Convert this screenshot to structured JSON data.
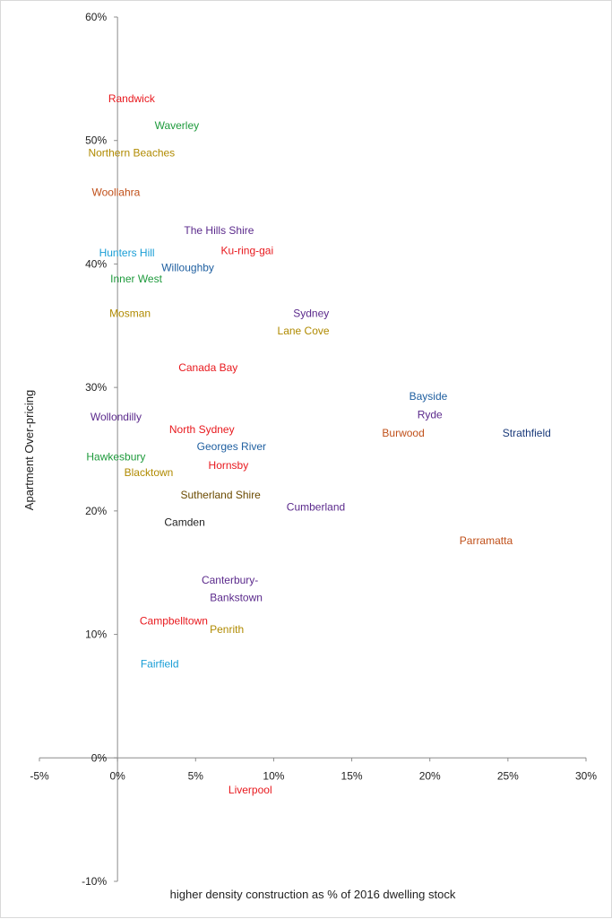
{
  "chart_data": {
    "type": "scatter",
    "xlabel": "higher density construction as % of 2016 dwelling stock",
    "ylabel": "Apartment Over-pricing",
    "xlim": [
      -5,
      30
    ],
    "ylim": [
      -10,
      60
    ],
    "x_ticks": [
      -5,
      0,
      5,
      10,
      15,
      20,
      25,
      30
    ],
    "y_ticks": [
      -10,
      0,
      10,
      20,
      30,
      40,
      50,
      60
    ],
    "x_tick_labels": [
      "-5%",
      "0%",
      "5%",
      "10%",
      "15%",
      "20%",
      "25%",
      "30%"
    ],
    "y_tick_labels": [
      "-10%",
      "0%",
      "10%",
      "20%",
      "30%",
      "40%",
      "50%",
      "60%"
    ],
    "grid": false,
    "points": [
      {
        "label": "Randwick",
        "x": 0.9,
        "y": 53.4,
        "color": "#e8191e"
      },
      {
        "label": "Waverley",
        "x": 3.8,
        "y": 51.2,
        "color": "#1e9a3c"
      },
      {
        "label": "Northern Beaches",
        "x": 0.9,
        "y": 49.0,
        "color": "#b08a00"
      },
      {
        "label": "Woollahra",
        "x": -0.1,
        "y": 45.8,
        "color": "#c0501a"
      },
      {
        "label": "The Hills Shire",
        "x": 6.5,
        "y": 42.7,
        "color": "#5b2a8c"
      },
      {
        "label": "Ku-ring-gai",
        "x": 8.3,
        "y": 41.1,
        "color": "#e8191e"
      },
      {
        "label": "Hunters Hill",
        "x": 0.6,
        "y": 40.9,
        "color": "#1a9ed6"
      },
      {
        "label": "Willoughby",
        "x": 4.5,
        "y": 39.7,
        "color": "#1f5fa0"
      },
      {
        "label": "Inner West",
        "x": 1.2,
        "y": 38.8,
        "color": "#1e9a3c"
      },
      {
        "label": "Mosman",
        "x": 0.8,
        "y": 36.0,
        "color": "#b08a00"
      },
      {
        "label": "Sydney",
        "x": 12.4,
        "y": 36.0,
        "color": "#5b2a8c"
      },
      {
        "label": "Lane Cove",
        "x": 11.9,
        "y": 34.6,
        "color": "#b08a00"
      },
      {
        "label": "Canada Bay",
        "x": 5.8,
        "y": 31.6,
        "color": "#e8191e"
      },
      {
        "label": "Bayside",
        "x": 19.9,
        "y": 29.3,
        "color": "#1f5fa0"
      },
      {
        "label": "Ryde",
        "x": 20.0,
        "y": 27.8,
        "color": "#5b2a8c"
      },
      {
        "label": "Wollondilly",
        "x": -0.1,
        "y": 27.6,
        "color": "#5b2a8c"
      },
      {
        "label": "North Sydney",
        "x": 5.4,
        "y": 26.6,
        "color": "#e8191e"
      },
      {
        "label": "Burwood",
        "x": 18.3,
        "y": 26.3,
        "color": "#c0501a"
      },
      {
        "label": "Strathfield",
        "x": 26.2,
        "y": 26.3,
        "color": "#1a3a7a"
      },
      {
        "label": "Georges River",
        "x": 7.3,
        "y": 25.2,
        "color": "#1f5fa0"
      },
      {
        "label": "Hawkesbury",
        "x": -0.1,
        "y": 24.4,
        "color": "#1e9a3c"
      },
      {
        "label": "Hornsby",
        "x": 7.1,
        "y": 23.7,
        "color": "#e8191e"
      },
      {
        "label": "Blacktown",
        "x": 2.0,
        "y": 23.1,
        "color": "#b08a00"
      },
      {
        "label": "Sutherland Shire",
        "x": 6.6,
        "y": 21.3,
        "color": "#6b4a00"
      },
      {
        "label": "Cumberland",
        "x": 12.7,
        "y": 20.3,
        "color": "#5b2a8c"
      },
      {
        "label": "Camden",
        "x": 4.3,
        "y": 19.1,
        "color": "#222222"
      },
      {
        "label": "Parramatta",
        "x": 23.6,
        "y": 17.6,
        "color": "#c0501a"
      },
      {
        "label": "Canterbury-",
        "x": 7.2,
        "y": 14.4,
        "color": "#5b2a8c"
      },
      {
        "label": "Bankstown",
        "x": 7.6,
        "y": 13.0,
        "color": "#5b2a8c"
      },
      {
        "label": "Campbelltown",
        "x": 3.6,
        "y": 11.1,
        "color": "#e8191e"
      },
      {
        "label": "Penrith",
        "x": 7.0,
        "y": 10.4,
        "color": "#b08a00"
      },
      {
        "label": "Fairfield",
        "x": 2.7,
        "y": 7.6,
        "color": "#1a9ed6"
      },
      {
        "label": "Liverpool",
        "x": 8.5,
        "y": -2.6,
        "color": "#e8191e"
      }
    ],
    "axis_color": "#8c8c8c"
  }
}
